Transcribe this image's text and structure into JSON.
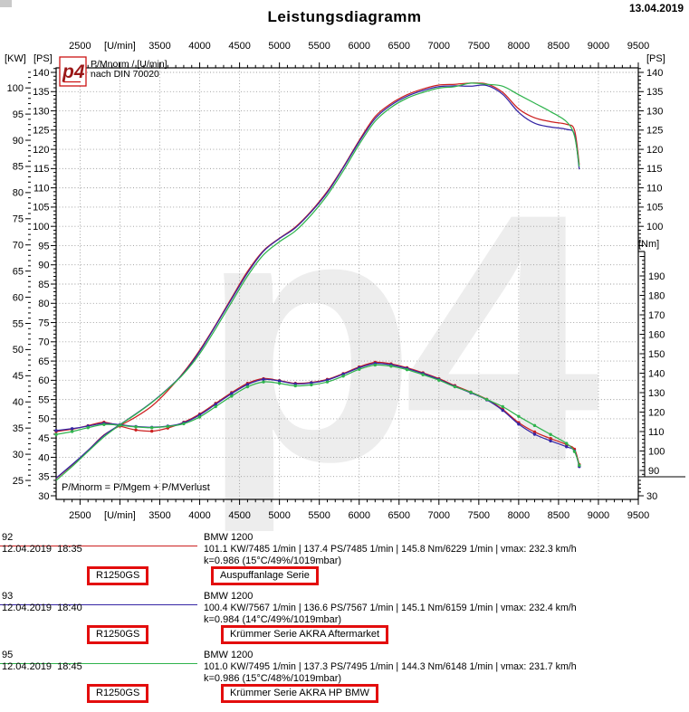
{
  "page": {
    "title": "Leistungsdiagramm",
    "date": "13.04.2019"
  },
  "chart_data": {
    "type": "line",
    "title": "Leistungsdiagramm",
    "grid": true,
    "watermark": "p4",
    "legend": {
      "logo": "p4",
      "line1": "P/Mnorm / [U/min]",
      "line2": "nach DIN 70020",
      "position": "top-left"
    },
    "footnote": "P/Mnorm = P/Mgem + P/MVerlust",
    "axes": {
      "x": {
        "unit": "[U/min]",
        "min": 2200,
        "max": 9500,
        "label_step": 500,
        "minor_step": 100,
        "first_label": 2500
      },
      "ps": {
        "unit": "[PS]",
        "min": 30,
        "max": 140,
        "step": 5
      },
      "kw": {
        "unit": "[KW]",
        "min": 25,
        "max": 100,
        "step": 5
      },
      "nm": {
        "unit": "[Nm]",
        "min": 90,
        "max": 190,
        "step": 10
      }
    },
    "rpm": [
      2200,
      2400,
      2600,
      2800,
      3000,
      3200,
      3400,
      3600,
      3800,
      4000,
      4200,
      4400,
      4600,
      4800,
      5000,
      5200,
      5400,
      5600,
      5800,
      6000,
      6200,
      6400,
      6600,
      6800,
      7000,
      7200,
      7400,
      7600,
      7800,
      8000,
      8200,
      8400,
      8600,
      8700,
      8760
    ],
    "series": [
      {
        "id": "92",
        "label": "Auspuffanlage Serie",
        "color": "#cc2020",
        "power_ps": [
          34.5,
          38.0,
          41.8,
          45.8,
          48.2,
          50.5,
          53.3,
          57.3,
          62.1,
          67.8,
          74.4,
          81.4,
          88.3,
          93.7,
          96.9,
          99.8,
          104.0,
          109.1,
          115.4,
          122.3,
          128.5,
          131.9,
          134.2,
          135.7,
          136.7,
          136.9,
          137.2,
          137.0,
          134.8,
          130.5,
          128.2,
          127.2,
          126.5,
          125.0,
          116.0
        ],
        "torque_nm": [
          110.0,
          111.2,
          113.0,
          114.8,
          112.8,
          110.8,
          110.2,
          111.8,
          114.8,
          119.0,
          124.5,
          130.0,
          134.8,
          137.2,
          136.2,
          134.8,
          135.2,
          136.8,
          139.8,
          143.2,
          145.6,
          144.8,
          142.8,
          140.2,
          137.2,
          133.6,
          130.3,
          126.6,
          121.4,
          114.6,
          109.8,
          106.4,
          103.3,
          100.9,
          93.0
        ],
        "peak": {
          "kw": 101.1,
          "kw_rpm": 7485,
          "ps": 137.4,
          "ps_rpm": 7485,
          "nm": 145.8,
          "nm_rpm": 6229,
          "vmax_kmh": 232.3
        }
      },
      {
        "id": "93",
        "label": "Krümmer Serie AKRA Aftermarket",
        "color": "#3525a5",
        "power_ps": [
          34.6,
          38.1,
          41.8,
          45.7,
          48.5,
          51.3,
          54.3,
          57.8,
          61.9,
          67.5,
          74.2,
          81.1,
          87.9,
          93.5,
          96.8,
          99.6,
          103.8,
          108.8,
          115.2,
          122.0,
          128.0,
          131.5,
          133.8,
          135.3,
          136.3,
          136.5,
          136.4,
          136.6,
          134.3,
          129.6,
          126.8,
          125.8,
          125.2,
          123.8,
          114.8
        ],
        "torque_nm": [
          110.5,
          111.5,
          112.8,
          114.2,
          113.5,
          112.6,
          112.2,
          112.8,
          114.5,
          118.5,
          124.0,
          129.5,
          134.2,
          136.8,
          136.0,
          134.5,
          135.0,
          136.5,
          139.5,
          142.8,
          145.0,
          144.3,
          142.4,
          139.8,
          136.8,
          133.2,
          129.9,
          126.3,
          120.9,
          113.8,
          108.6,
          105.2,
          102.2,
          100.0,
          92.0
        ],
        "peak": {
          "kw": 100.4,
          "kw_rpm": 7567,
          "ps": 136.6,
          "ps_rpm": 7567,
          "nm": 145.1,
          "nm_rpm": 6159,
          "vmax_kmh": 232.4
        }
      },
      {
        "id": "95",
        "label": "Krümmer Serie AKRA HP BMW",
        "color": "#2fb34d",
        "power_ps": [
          34.0,
          37.6,
          41.5,
          45.3,
          48.4,
          51.2,
          54.2,
          57.7,
          61.7,
          66.9,
          73.4,
          80.3,
          87.1,
          92.6,
          96.0,
          98.8,
          103.0,
          108.1,
          114.4,
          121.3,
          127.3,
          130.9,
          133.3,
          134.8,
          135.9,
          136.3,
          137.2,
          136.9,
          136.4,
          134.2,
          132.0,
          129.8,
          127.2,
          123.5,
          115.5
        ],
        "torque_nm": [
          108.5,
          110.0,
          112.0,
          113.6,
          113.2,
          112.4,
          112.0,
          112.6,
          114.0,
          117.5,
          122.8,
          128.2,
          133.0,
          135.5,
          134.8,
          133.5,
          134.0,
          135.5,
          138.5,
          142.0,
          144.2,
          143.6,
          141.8,
          139.2,
          136.4,
          133.0,
          130.2,
          126.5,
          122.8,
          117.8,
          113.1,
          108.5,
          103.9,
          99.7,
          92.6
        ],
        "peak": {
          "kw": 101.0,
          "kw_rpm": 7495,
          "ps": 137.3,
          "ps_rpm": 7495,
          "nm": 144.3,
          "nm_rpm": 6148,
          "vmax_kmh": 231.7
        }
      }
    ]
  },
  "runs": [
    {
      "id": "92",
      "date": "12.04.2019",
      "time": "18:35",
      "vehicle": "BMW 1200",
      "stats": "101.1 KW/7485 1/min  |  137.4 PS/7485 1/min  |  145.8 Nm/6229 1/min | vmax: 232.3 km/h",
      "correction": "k=0.986 (15°C/49%/1019mbar)",
      "model_box": "R1250GS",
      "exhaust_box": "Auspuffanlage Serie",
      "color": "#cc2020"
    },
    {
      "id": "93",
      "date": "12.04.2019",
      "time": "18:40",
      "vehicle": "BMW 1200",
      "stats": "100.4 KW/7567 1/min  |  136.6 PS/7567 1/min  |  145.1 Nm/6159 1/min | vmax: 232.4 km/h",
      "correction": "k=0.984 (14°C/49%/1019mbar)",
      "model_box": "R1250GS",
      "exhaust_box": "Krümmer Serie AKRA Aftermarket",
      "color": "#3525a5"
    },
    {
      "id": "95",
      "date": "12.04.2019",
      "time": "18:45",
      "vehicle": "BMW 1200",
      "stats": "101.0 KW/7495 1/min  |  137.3 PS/7495 1/min  |  144.3 Nm/6148 1/min | vmax: 231.7 km/h",
      "correction": "k=0.986 (15°C/48%/1019mbar)",
      "model_box": "R1250GS",
      "exhaust_box": "Krümmer Serie AKRA HP BMW",
      "color": "#2fb34d"
    }
  ]
}
